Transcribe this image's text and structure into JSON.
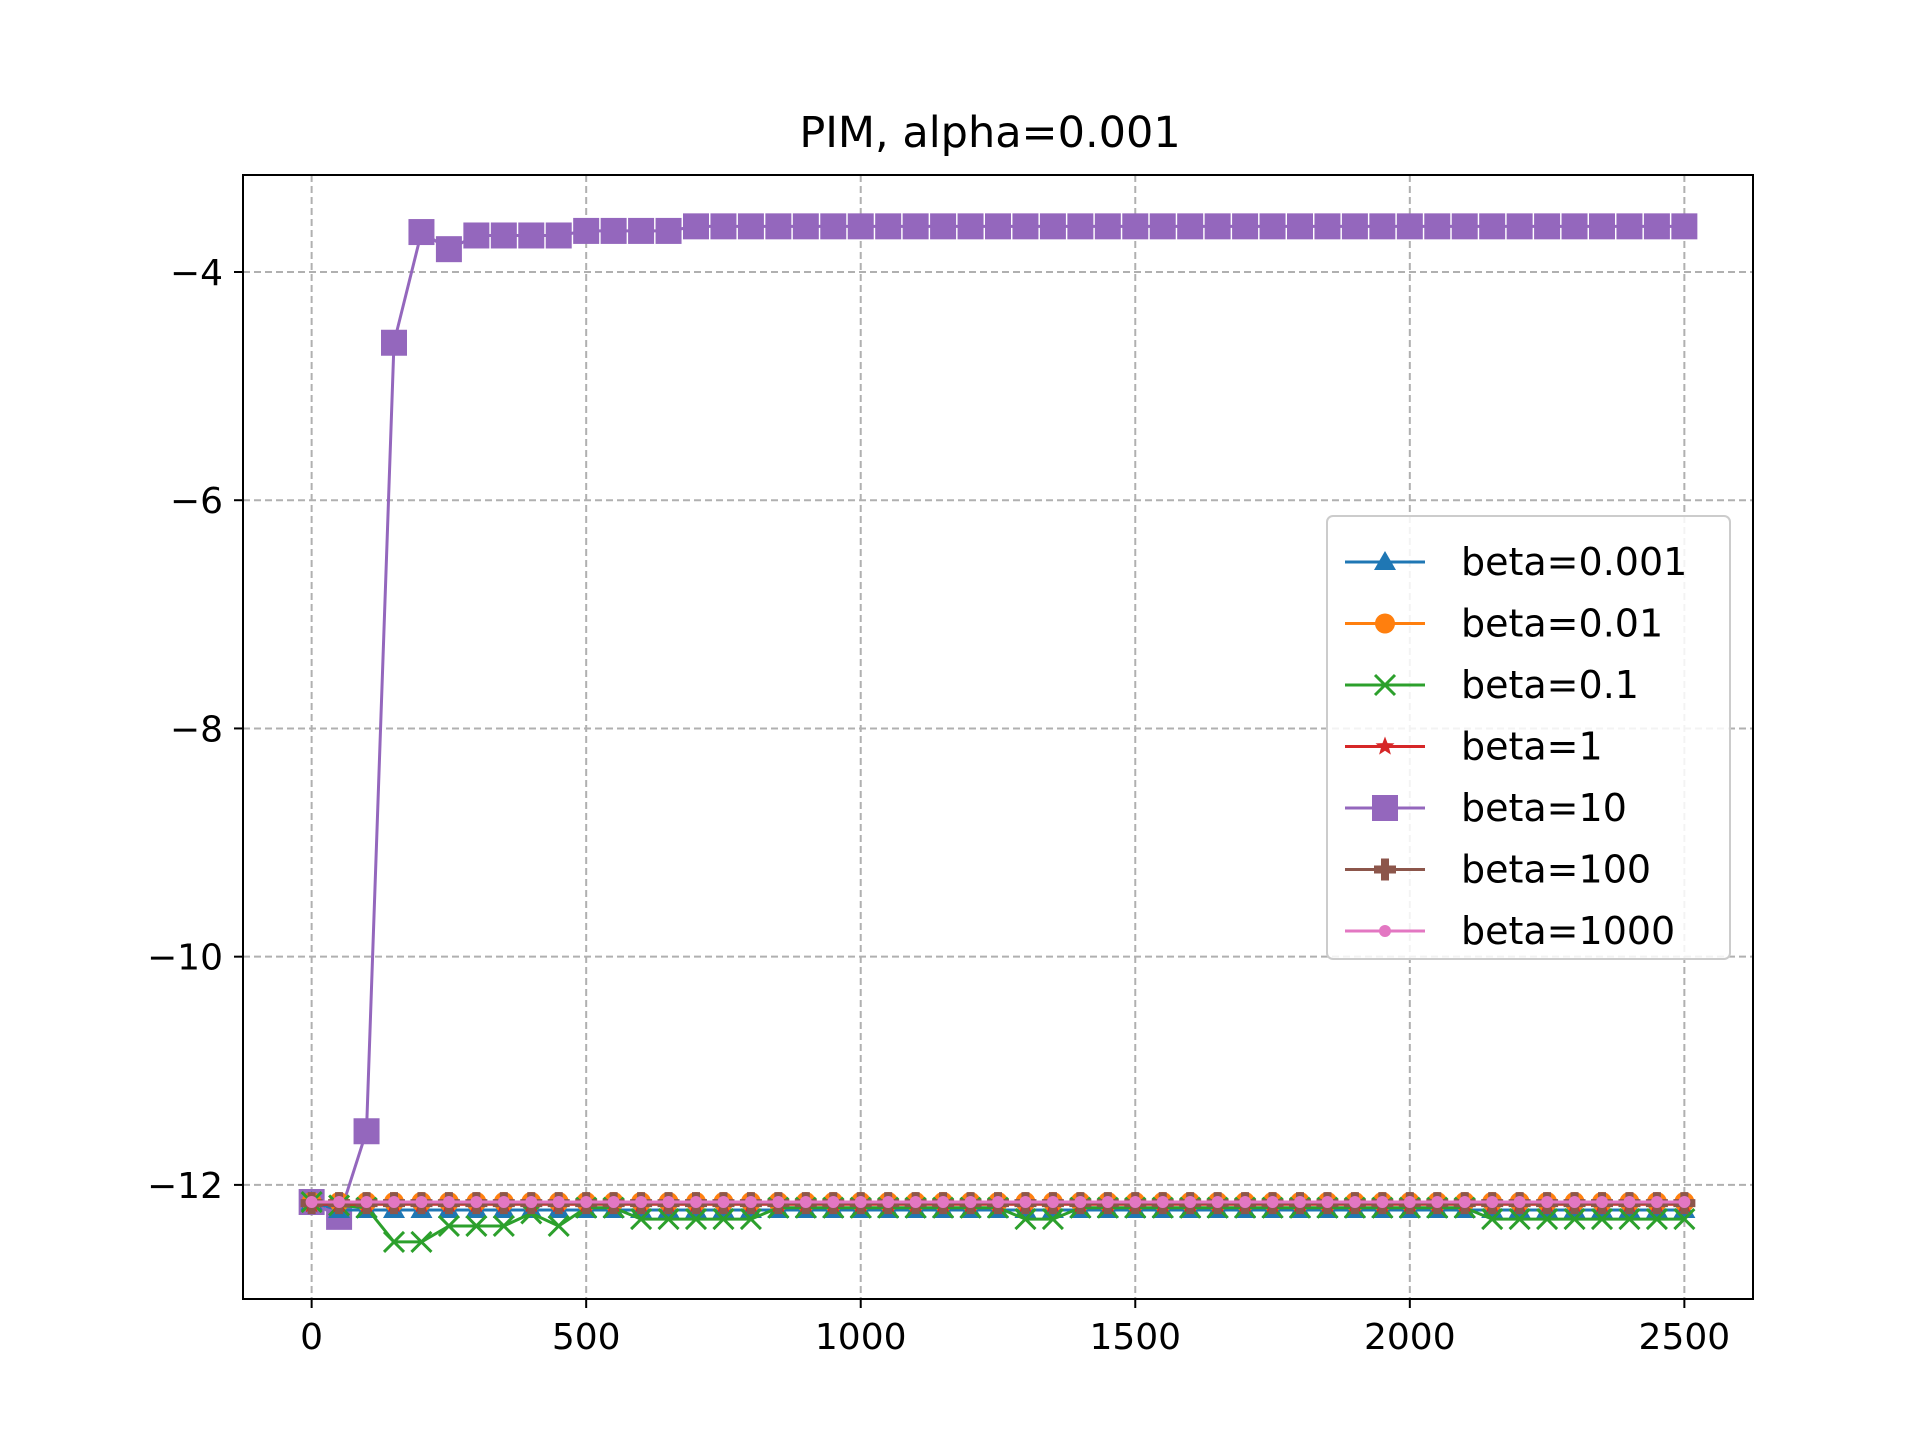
{
  "chart_data": {
    "type": "line",
    "title": "PIM, alpha=0.001",
    "xlabel": "",
    "ylabel": "",
    "xlim": [
      -125,
      2625
    ],
    "ylim": [
      -13.0,
      -3.15
    ],
    "xticks": [
      0,
      500,
      1000,
      1500,
      2000,
      2500
    ],
    "xtick_labels": [
      "0",
      "500",
      "1000",
      "1500",
      "2000",
      "2500"
    ],
    "yticks": [
      -12,
      -10,
      -8,
      -6,
      -4
    ],
    "ytick_labels": [
      "−12",
      "−10",
      "−8",
      "−6",
      "−4"
    ],
    "grid": true,
    "legend_position": "center-right",
    "x": [
      0,
      50,
      100,
      150,
      200,
      250,
      300,
      350,
      400,
      450,
      500,
      550,
      600,
      650,
      700,
      750,
      800,
      850,
      900,
      950,
      1000,
      1050,
      1100,
      1150,
      1200,
      1250,
      1300,
      1350,
      1400,
      1450,
      1500,
      1550,
      1600,
      1650,
      1700,
      1750,
      1800,
      1850,
      1900,
      1950,
      2000,
      2050,
      2100,
      2150,
      2200,
      2250,
      2300,
      2350,
      2400,
      2450,
      2500
    ],
    "series": [
      {
        "name": "beta=0.001",
        "color": "#1f77b4",
        "marker": "triangle-up",
        "values": [
          -12.15,
          -12.22,
          -12.22,
          -12.22,
          -12.22,
          -12.22,
          -12.22,
          -12.22,
          -12.22,
          -12.22,
          -12.22,
          -12.22,
          -12.22,
          -12.22,
          -12.22,
          -12.22,
          -12.22,
          -12.22,
          -12.22,
          -12.22,
          -12.22,
          -12.22,
          -12.22,
          -12.22,
          -12.22,
          -12.22,
          -12.22,
          -12.22,
          -12.22,
          -12.22,
          -12.22,
          -12.22,
          -12.22,
          -12.22,
          -12.22,
          -12.22,
          -12.22,
          -12.22,
          -12.22,
          -12.22,
          -12.22,
          -12.22,
          -12.22,
          -12.22,
          -12.22,
          -12.22,
          -12.22,
          -12.22,
          -12.22,
          -12.22,
          -12.22
        ]
      },
      {
        "name": "beta=0.01",
        "color": "#ff7f0e",
        "marker": "circle",
        "values": [
          -12.15,
          -12.15,
          -12.15,
          -12.15,
          -12.15,
          -12.15,
          -12.15,
          -12.15,
          -12.15,
          -12.15,
          -12.15,
          -12.15,
          -12.15,
          -12.15,
          -12.15,
          -12.15,
          -12.15,
          -12.15,
          -12.15,
          -12.15,
          -12.15,
          -12.15,
          -12.15,
          -12.15,
          -12.15,
          -12.15,
          -12.15,
          -12.15,
          -12.15,
          -12.15,
          -12.15,
          -12.15,
          -12.15,
          -12.15,
          -12.15,
          -12.15,
          -12.15,
          -12.15,
          -12.15,
          -12.15,
          -12.15,
          -12.15,
          -12.15,
          -12.15,
          -12.15,
          -12.15,
          -12.15,
          -12.15,
          -12.15,
          -12.15,
          -12.15
        ]
      },
      {
        "name": "beta=0.1",
        "color": "#2ca02c",
        "marker": "x",
        "values": [
          -12.15,
          -12.18,
          -12.2,
          -12.5,
          -12.5,
          -12.36,
          -12.36,
          -12.36,
          -12.25,
          -12.36,
          -12.2,
          -12.2,
          -12.3,
          -12.3,
          -12.3,
          -12.3,
          -12.3,
          -12.2,
          -12.2,
          -12.2,
          -12.2,
          -12.2,
          -12.2,
          -12.2,
          -12.2,
          -12.2,
          -12.3,
          -12.3,
          -12.2,
          -12.2,
          -12.2,
          -12.2,
          -12.2,
          -12.2,
          -12.2,
          -12.2,
          -12.2,
          -12.2,
          -12.2,
          -12.2,
          -12.2,
          -12.2,
          -12.2,
          -12.3,
          -12.3,
          -12.3,
          -12.3,
          -12.3,
          -12.3,
          -12.3,
          -12.3
        ]
      },
      {
        "name": "beta=1",
        "color": "#d62728",
        "marker": "star",
        "values": [
          -12.17,
          -12.17,
          -12.17,
          -12.17,
          -12.17,
          -12.17,
          -12.17,
          -12.17,
          -12.17,
          -12.17,
          -12.17,
          -12.17,
          -12.17,
          -12.17,
          -12.17,
          -12.17,
          -12.17,
          -12.17,
          -12.17,
          -12.17,
          -12.17,
          -12.17,
          -12.17,
          -12.17,
          -12.17,
          -12.17,
          -12.17,
          -12.17,
          -12.17,
          -12.17,
          -12.17,
          -12.17,
          -12.17,
          -12.17,
          -12.17,
          -12.17,
          -12.17,
          -12.17,
          -12.17,
          -12.17,
          -12.17,
          -12.17,
          -12.17,
          -12.17,
          -12.17,
          -12.17,
          -12.17,
          -12.17,
          -12.17,
          -12.17,
          -12.17
        ]
      },
      {
        "name": "beta=10",
        "color": "#9467bd",
        "marker": "square",
        "values": [
          -12.15,
          -12.28,
          -11.53,
          -4.62,
          -3.65,
          -3.8,
          -3.68,
          -3.68,
          -3.68,
          -3.68,
          -3.64,
          -3.64,
          -3.64,
          -3.64,
          -3.6,
          -3.6,
          -3.6,
          -3.6,
          -3.6,
          -3.6,
          -3.6,
          -3.6,
          -3.6,
          -3.6,
          -3.6,
          -3.6,
          -3.6,
          -3.6,
          -3.6,
          -3.6,
          -3.6,
          -3.6,
          -3.6,
          -3.6,
          -3.6,
          -3.6,
          -3.6,
          -3.6,
          -3.6,
          -3.6,
          -3.6,
          -3.6,
          -3.6,
          -3.6,
          -3.6,
          -3.6,
          -3.6,
          -3.6,
          -3.6,
          -3.6,
          -3.6
        ]
      },
      {
        "name": "beta=100",
        "color": "#8c564b",
        "marker": "plus",
        "values": [
          -12.16,
          -12.16,
          -12.16,
          -12.16,
          -12.16,
          -12.16,
          -12.16,
          -12.16,
          -12.16,
          -12.16,
          -12.16,
          -12.16,
          -12.16,
          -12.16,
          -12.16,
          -12.16,
          -12.16,
          -12.16,
          -12.16,
          -12.16,
          -12.16,
          -12.16,
          -12.16,
          -12.16,
          -12.16,
          -12.16,
          -12.16,
          -12.16,
          -12.16,
          -12.16,
          -12.16,
          -12.16,
          -12.16,
          -12.16,
          -12.16,
          -12.16,
          -12.16,
          -12.16,
          -12.16,
          -12.16,
          -12.16,
          -12.16,
          -12.16,
          -12.16,
          -12.16,
          -12.16,
          -12.16,
          -12.16,
          -12.16,
          -12.16,
          -12.16
        ]
      },
      {
        "name": "beta=1000",
        "color": "#e377c2",
        "marker": "point",
        "values": [
          -12.15,
          -12.15,
          -12.15,
          -12.15,
          -12.15,
          -12.15,
          -12.15,
          -12.15,
          -12.15,
          -12.15,
          -12.15,
          -12.15,
          -12.15,
          -12.15,
          -12.15,
          -12.15,
          -12.15,
          -12.15,
          -12.15,
          -12.15,
          -12.15,
          -12.15,
          -12.15,
          -12.15,
          -12.15,
          -12.15,
          -12.15,
          -12.15,
          -12.15,
          -12.15,
          -12.15,
          -12.15,
          -12.15,
          -12.15,
          -12.15,
          -12.15,
          -12.15,
          -12.15,
          -12.15,
          -12.15,
          -12.15,
          -12.15,
          -12.15,
          -12.15,
          -12.15,
          -12.15,
          -12.15,
          -12.15,
          -12.15,
          -12.15,
          -12.15
        ]
      }
    ]
  }
}
